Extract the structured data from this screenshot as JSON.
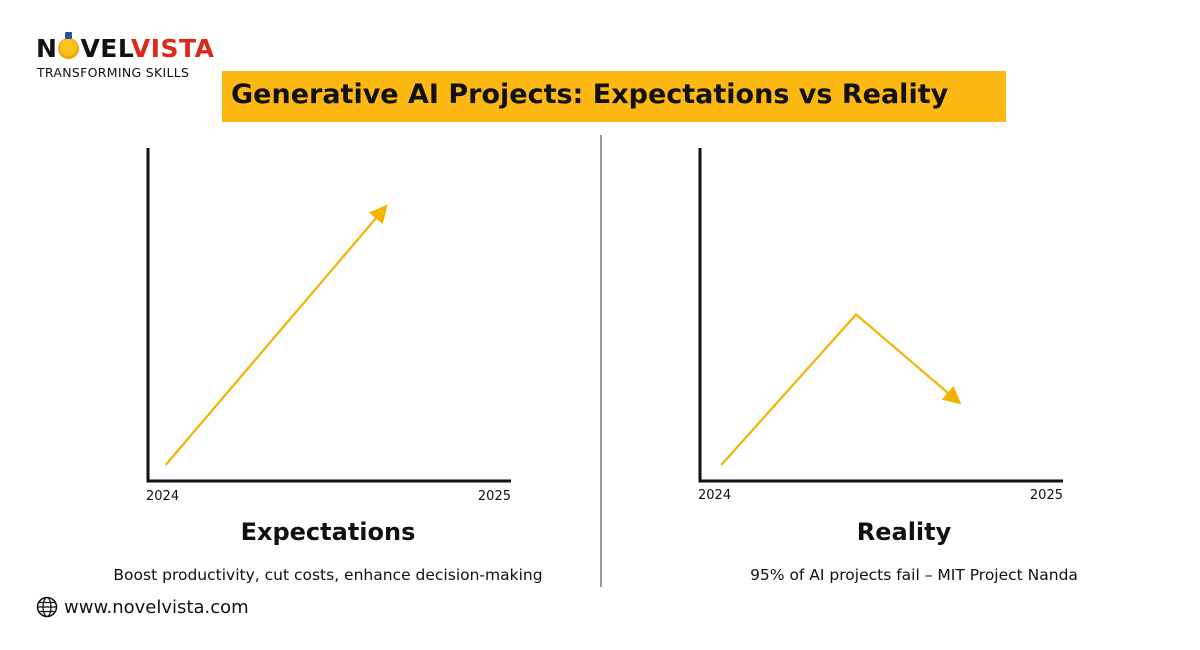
{
  "brand": {
    "name_part1": "N",
    "name_part2": "VEL",
    "name_part3": "VISTA",
    "tagline": "TRANSFORMING SKILLS"
  },
  "title": "Generative AI Projects: Expectations vs Reality",
  "colors": {
    "accent": "#fdb813",
    "line": "#f5b301",
    "brand_red": "#e0271b",
    "axis": "#111111",
    "divider": "#9a9a9a"
  },
  "chart_data": [
    {
      "type": "line",
      "title": "Expectations",
      "x": [
        "2024",
        "2025"
      ],
      "series": [
        {
          "points": [
            [
              0.05,
              0.05
            ],
            [
              0.66,
              0.83
            ]
          ]
        }
      ],
      "xlim": [
        0,
        1
      ],
      "ylim": [
        0,
        1
      ],
      "tick_labels": [
        "2024",
        "2025"
      ],
      "caption": "Boost productivity, cut costs, enhance decision-making",
      "arrow_end": true
    },
    {
      "type": "line",
      "title": "Reality",
      "x": [
        "2024",
        "2025"
      ],
      "series": [
        {
          "points": [
            [
              0.06,
              0.05
            ],
            [
              0.43,
              0.5
            ],
            [
              0.72,
              0.23
            ]
          ]
        }
      ],
      "xlim": [
        0,
        1
      ],
      "ylim": [
        0,
        1
      ],
      "tick_labels": [
        "2024",
        "2025"
      ],
      "caption": "95% of AI projects fail – MIT Project Nanda",
      "arrow_end": true
    }
  ],
  "footer": {
    "website": "www.novelvista.com",
    "icon": "globe-icon"
  }
}
